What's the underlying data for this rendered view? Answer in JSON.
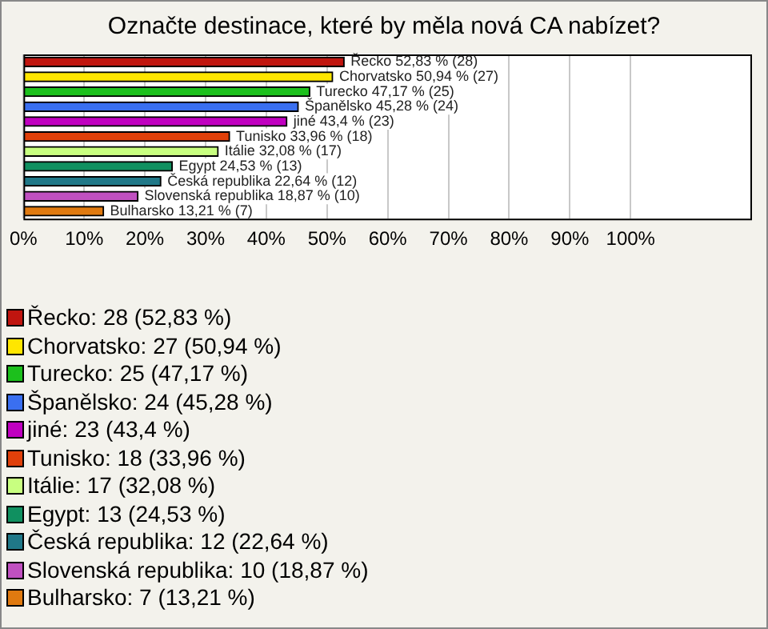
{
  "chart_data": {
    "type": "bar",
    "orientation": "horizontal",
    "title": "Označte destinace, které by měla nová CA nabízet?",
    "categories": [
      "Řecko",
      "Chorvatsko",
      "Turecko",
      "Španělsko",
      "jiné",
      "Tunisko",
      "Itálie",
      "Egypt",
      "Česká republika",
      "Slovenská republika",
      "Bulharsko"
    ],
    "series": [
      {
        "name": "Řecko: 28 (52,83 %)",
        "color": "#c0150f",
        "values": [
          52.83,
          null,
          null,
          null,
          null,
          null,
          null,
          null,
          null,
          null,
          null
        ],
        "value_labels": [
          "52,83 % (28)",
          null,
          null,
          null,
          null,
          null,
          null,
          null,
          null,
          null,
          null
        ]
      },
      {
        "name": "Chorvatsko: 27 (50,94 %)",
        "color": "#ffe600",
        "values": [
          null,
          50.94,
          null,
          null,
          null,
          null,
          null,
          null,
          null,
          null,
          null
        ],
        "value_labels": [
          null,
          "50,94 % (27)",
          null,
          null,
          null,
          null,
          null,
          null,
          null,
          null,
          null
        ]
      },
      {
        "name": "Turecko: 25 (47,17 %)",
        "color": "#1cc01c",
        "values": [
          null,
          null,
          47.17,
          null,
          null,
          null,
          null,
          null,
          null,
          null,
          null
        ],
        "value_labels": [
          null,
          null,
          "47,17 % (25)",
          null,
          null,
          null,
          null,
          null,
          null,
          null,
          null
        ]
      },
      {
        "name": "Španělsko: 24 (45,28 %)",
        "color": "#3a6ff0",
        "values": [
          null,
          null,
          null,
          45.28,
          null,
          null,
          null,
          null,
          null,
          null,
          null
        ],
        "value_labels": [
          null,
          null,
          null,
          "45,28 % (24)",
          null,
          null,
          null,
          null,
          null,
          null,
          null
        ]
      },
      {
        "name": "jiné: 23 (43,4 %)",
        "color": "#c000c0",
        "values": [
          null,
          null,
          null,
          null,
          43.4,
          null,
          null,
          null,
          null,
          null,
          null
        ],
        "value_labels": [
          null,
          null,
          null,
          null,
          "43,4 % (23)",
          null,
          null,
          null,
          null,
          null,
          null
        ]
      },
      {
        "name": "Tunisko: 18 (33,96 %)",
        "color": "#e0400a",
        "values": [
          null,
          null,
          null,
          null,
          null,
          33.96,
          null,
          null,
          null,
          null,
          null
        ],
        "value_labels": [
          null,
          null,
          null,
          null,
          null,
          "33,96 % (18)",
          null,
          null,
          null,
          null,
          null
        ]
      },
      {
        "name": "Itálie: 17 (32,08 %)",
        "color": "#c8ff80",
        "values": [
          null,
          null,
          null,
          null,
          null,
          null,
          32.08,
          null,
          null,
          null,
          null
        ],
        "value_labels": [
          null,
          null,
          null,
          null,
          null,
          null,
          "32,08 % (17)",
          null,
          null,
          null,
          null
        ]
      },
      {
        "name": "Egypt: 13 (24,53 %)",
        "color": "#109060",
        "values": [
          null,
          null,
          null,
          null,
          null,
          null,
          null,
          24.53,
          null,
          null,
          null
        ],
        "value_labels": [
          null,
          null,
          null,
          null,
          null,
          null,
          null,
          "24,53 % (13)",
          null,
          null,
          null
        ]
      },
      {
        "name": "Česká republika: 12 (22,64 %)",
        "color": "#207888",
        "values": [
          null,
          null,
          null,
          null,
          null,
          null,
          null,
          null,
          22.64,
          null,
          null
        ],
        "value_labels": [
          null,
          null,
          null,
          null,
          null,
          null,
          null,
          null,
          "22,64 % (12)",
          null,
          null
        ]
      },
      {
        "name": "Slovenská republika: 10 (18,87 %)",
        "color": "#c050c0",
        "values": [
          null,
          null,
          null,
          null,
          null,
          null,
          null,
          null,
          null,
          18.87,
          null
        ],
        "value_labels": [
          null,
          null,
          null,
          null,
          null,
          null,
          null,
          null,
          null,
          "18,87 % (10)",
          null
        ]
      },
      {
        "name": "Bulharsko: 7 (13,21 %)",
        "color": "#e07a10",
        "values": [
          null,
          null,
          null,
          null,
          null,
          null,
          null,
          null,
          null,
          null,
          13.21
        ],
        "value_labels": [
          null,
          null,
          null,
          null,
          null,
          null,
          null,
          null,
          null,
          null,
          "13,21 % (7)"
        ]
      }
    ],
    "xlim": [
      0,
      120
    ],
    "xticks": [
      {
        "value": 0,
        "label": "0%"
      },
      {
        "value": 10,
        "label": "10%"
      },
      {
        "value": 20,
        "label": "20%"
      },
      {
        "value": 30,
        "label": "30%"
      },
      {
        "value": 40,
        "label": "40%"
      },
      {
        "value": 50,
        "label": "50%"
      },
      {
        "value": 60,
        "label": "60%"
      },
      {
        "value": 70,
        "label": "70%"
      },
      {
        "value": 80,
        "label": "80%"
      },
      {
        "value": 90,
        "label": "90%"
      },
      {
        "value": 100,
        "label": "100%"
      }
    ],
    "grid": "x",
    "legend": "bottom",
    "tick_labels": "x"
  }
}
